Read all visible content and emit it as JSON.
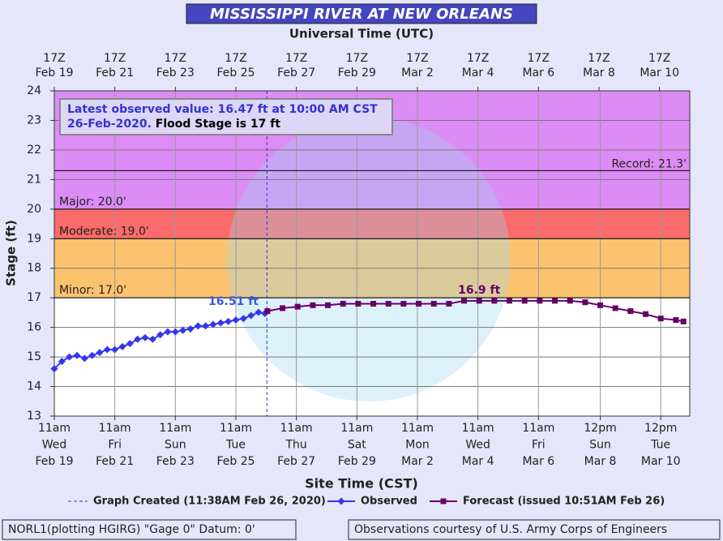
{
  "chart_data": {
    "type": "line",
    "title": "MISSISSIPPI RIVER AT NEW ORLEANS",
    "top_axis_title": "Universal Time (UTC)",
    "xlabel": "Site Time (CST)",
    "ylabel": "Stage (ft)",
    "xlim": [
      "Feb 19 11:00",
      "Mar 11 11:00"
    ],
    "ylim": [
      13,
      24
    ],
    "yticks": [
      13,
      14,
      15,
      16,
      17,
      18,
      19,
      20,
      21,
      22,
      23,
      24
    ],
    "grid": true,
    "xticks": [
      {
        "value": "Feb 19 11:00",
        "label": [
          "11am",
          "Wed",
          "Feb 19"
        ]
      },
      {
        "value": "Feb 21 11:00",
        "label": [
          "11am",
          "Fri",
          "Feb 21"
        ]
      },
      {
        "value": "Feb 23 11:00",
        "label": [
          "11am",
          "Sun",
          "Feb 23"
        ]
      },
      {
        "value": "Feb 25 11:00",
        "label": [
          "11am",
          "Tue",
          "Feb 25"
        ]
      },
      {
        "value": "Feb 27 11:00",
        "label": [
          "11am",
          "Thu",
          "Feb 27"
        ]
      },
      {
        "value": "Feb 29 11:00",
        "label": [
          "11am",
          "Sat",
          "Feb 29"
        ]
      },
      {
        "value": "Mar 2 11:00",
        "label": [
          "11am",
          "Mon",
          "Mar 2"
        ]
      },
      {
        "value": "Mar 4 11:00",
        "label": [
          "11am",
          "Wed",
          "Mar 4"
        ]
      },
      {
        "value": "Mar 6 11:00",
        "label": [
          "11am",
          "Fri",
          "Mar 6"
        ]
      },
      {
        "value": "Mar 8 12:00",
        "label": [
          "12pm",
          "Sun",
          "Mar 8"
        ]
      },
      {
        "value": "Mar 10 12:00",
        "label": [
          "12pm",
          "Tue",
          "Mar 10"
        ]
      }
    ],
    "x2ticks": [
      {
        "value": "Feb 19 11:00",
        "label": [
          "17Z",
          "Feb 19"
        ]
      },
      {
        "value": "Feb 21 11:00",
        "label": [
          "17Z",
          "Feb 21"
        ]
      },
      {
        "value": "Feb 23 11:00",
        "label": [
          "17Z",
          "Feb 23"
        ]
      },
      {
        "value": "Feb 25 11:00",
        "label": [
          "17Z",
          "Feb 25"
        ]
      },
      {
        "value": "Feb 27 11:00",
        "label": [
          "17Z",
          "Feb 27"
        ]
      },
      {
        "value": "Feb 29 11:00",
        "label": [
          "17Z",
          "Feb 29"
        ]
      },
      {
        "value": "Mar 2 11:00",
        "label": [
          "17Z",
          "Mar 2"
        ]
      },
      {
        "value": "Mar 4 11:00",
        "label": [
          "17Z",
          "Mar 4"
        ]
      },
      {
        "value": "Mar 6 11:00",
        "label": [
          "17Z",
          "Mar 6"
        ]
      },
      {
        "value": "Mar 8 11:00",
        "label": [
          "17Z",
          "Mar 8"
        ]
      },
      {
        "value": "Mar 10 11:00",
        "label": [
          "17Z",
          "Mar 10"
        ]
      }
    ],
    "stages": [
      {
        "label": "Minor: 17.0'",
        "value": 17,
        "color": "#fcc36e"
      },
      {
        "label": "Moderate: 19.0'",
        "value": 19,
        "color": "#fc6b6b"
      },
      {
        "label": "Major: 20.0'",
        "value": 20,
        "color": "#dc8cf5"
      },
      {
        "label": "Record: 21.3'",
        "value": 21.3
      }
    ],
    "info": {
      "observed": "Latest observed value: 16.47 ft at 10:00 AM CST 26-Feb-2020.",
      "flood_stage": "Flood Stage is 17 ft"
    },
    "graph_created": {
      "x": "Feb 26 11:38",
      "label": "Graph Created (11:38AM Feb 26, 2020)",
      "color": "#3333dd"
    },
    "series": [
      {
        "name": "Observed",
        "color": "#3535f0",
        "marker": "diamond",
        "x": [
          "Feb 19 11:00",
          "Feb 19 17:00",
          "Feb 19 23:00",
          "Feb 20 05:00",
          "Feb 20 11:00",
          "Feb 20 17:00",
          "Feb 20 23:00",
          "Feb 21 05:00",
          "Feb 21 11:00",
          "Feb 21 17:00",
          "Feb 21 23:00",
          "Feb 22 05:00",
          "Feb 22 11:00",
          "Feb 22 17:00",
          "Feb 22 23:00",
          "Feb 23 05:00",
          "Feb 23 11:00",
          "Feb 23 17:00",
          "Feb 23 23:00",
          "Feb 24 05:00",
          "Feb 24 11:00",
          "Feb 24 17:00",
          "Feb 24 23:00",
          "Feb 25 05:00",
          "Feb 25 11:00",
          "Feb 25 17:00",
          "Feb 25 23:00",
          "Feb 26 05:00",
          "Feb 26 10:00"
        ],
        "values": [
          14.6,
          14.85,
          15.0,
          15.05,
          14.95,
          15.05,
          15.15,
          15.25,
          15.25,
          15.35,
          15.45,
          15.6,
          15.65,
          15.6,
          15.75,
          15.85,
          15.85,
          15.9,
          15.95,
          16.05,
          16.05,
          16.1,
          16.15,
          16.2,
          16.25,
          16.3,
          16.4,
          16.51,
          16.47
        ]
      },
      {
        "name": "Forecast (issued 10:51AM Feb 26)",
        "color": "#660066",
        "marker": "square",
        "x": [
          "Feb 26 12:00",
          "Feb 27 00:00",
          "Feb 27 12:00",
          "Feb 28 00:00",
          "Feb 28 12:00",
          "Feb 29 00:00",
          "Feb 29 12:00",
          "Mar 1 00:00",
          "Mar 1 12:00",
          "Mar 2 00:00",
          "Mar 2 12:00",
          "Mar 3 00:00",
          "Mar 3 12:00",
          "Mar 4 00:00",
          "Mar 4 12:00",
          "Mar 5 00:00",
          "Mar 5 12:00",
          "Mar 6 00:00",
          "Mar 6 12:00",
          "Mar 7 00:00",
          "Mar 7 12:00",
          "Mar 8 00:00",
          "Mar 8 12:00",
          "Mar 9 00:00",
          "Mar 9 12:00",
          "Mar 10 00:00",
          "Mar 10 12:00",
          "Mar 11 00:00",
          "Mar 11 06:00"
        ],
        "values": [
          16.55,
          16.65,
          16.7,
          16.75,
          16.75,
          16.8,
          16.8,
          16.8,
          16.8,
          16.8,
          16.8,
          16.8,
          16.8,
          16.9,
          16.9,
          16.9,
          16.9,
          16.9,
          16.9,
          16.9,
          16.9,
          16.85,
          16.75,
          16.65,
          16.55,
          16.45,
          16.3,
          16.25,
          16.2
        ]
      }
    ],
    "annotations": [
      {
        "text": "16.51 ft",
        "x": "Feb 26 05:00",
        "y": 16.51,
        "color": "#3a5ad6"
      },
      {
        "text": "16.9 ft",
        "x": "Mar 4 12:00",
        "y": 16.9,
        "color": "#660066"
      }
    ],
    "footer": {
      "left": "NORL1(plotting HGIRG) \"Gage 0\" Datum: 0'",
      "right": "Observations courtesy of U.S. Army Corps of Engineers"
    }
  }
}
